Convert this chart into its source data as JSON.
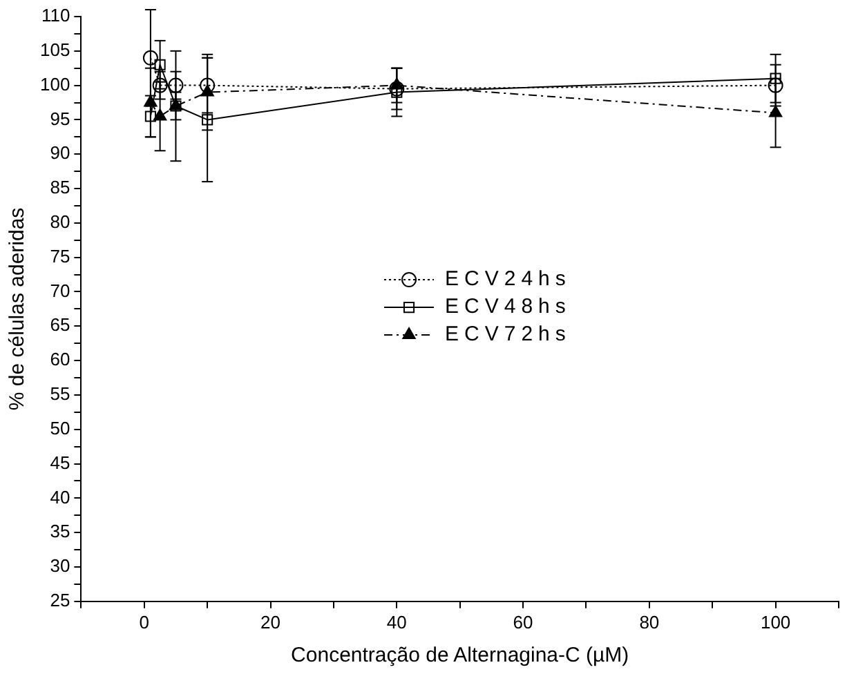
{
  "chart_data": {
    "type": "line",
    "xlabel": "Concentração de Alternagina-C (µM)",
    "ylabel": "% de células aderidas",
    "xlim": [
      -10,
      110
    ],
    "ylim": [
      25,
      110
    ],
    "xticks": [
      {
        "value": -10,
        "label": null
      },
      0,
      {
        "value": 10,
        "label": null
      },
      20,
      {
        "value": 30,
        "label": null
      },
      40,
      {
        "value": 50,
        "label": null
      },
      60,
      {
        "value": 70,
        "label": null
      },
      80,
      {
        "value": 90,
        "label": null
      },
      100,
      {
        "value": 110,
        "label": null
      }
    ],
    "yticks": [
      25,
      {
        "value": 27.5,
        "label": null
      },
      30,
      {
        "value": 32.5,
        "label": null
      },
      35,
      {
        "value": 37.5,
        "label": null
      },
      40,
      {
        "value": 42.5,
        "label": null
      },
      45,
      {
        "value": 47.5,
        "label": null
      },
      50,
      {
        "value": 52.5,
        "label": null
      },
      55,
      {
        "value": 57.5,
        "label": null
      },
      60,
      {
        "value": 62.5,
        "label": null
      },
      65,
      {
        "value": 67.5,
        "label": null
      },
      70,
      {
        "value": 72.5,
        "label": null
      },
      75,
      {
        "value": 77.5,
        "label": null
      },
      80,
      {
        "value": 82.5,
        "label": null
      },
      85,
      {
        "value": 87.5,
        "label": null
      },
      90,
      {
        "value": 92.5,
        "label": null
      },
      95,
      {
        "value": 97.5,
        "label": null
      },
      100,
      {
        "value": 102.5,
        "label": null
      },
      105,
      {
        "value": 107.5,
        "label": null
      },
      110
    ],
    "x": [
      1,
      2.5,
      5,
      10,
      40,
      100
    ],
    "grid": false,
    "legend": "center",
    "series": [
      {
        "name": "ECV24hs",
        "color": "#000000",
        "marker": "circle",
        "line_style": "dotted",
        "values": [
          104,
          100,
          100,
          100,
          99.5,
          100
        ],
        "errors": [
          7,
          2,
          2,
          4,
          3,
          3
        ]
      },
      {
        "name": "ECV48hs",
        "color": "#000000",
        "marker": "square",
        "line_style": "solid",
        "values": [
          95.5,
          103,
          97,
          95,
          99,
          101
        ],
        "errors": [
          3,
          3.5,
          2,
          9,
          3.5,
          3.5
        ]
      },
      {
        "name": "ECV72hs",
        "color": "#000000",
        "marker": "triangle",
        "line_style": "dashdot",
        "values": [
          97.5,
          95.5,
          97,
          99,
          100,
          96
        ],
        "errors": [
          5,
          5,
          8,
          5.5,
          2.5,
          5
        ]
      }
    ]
  }
}
